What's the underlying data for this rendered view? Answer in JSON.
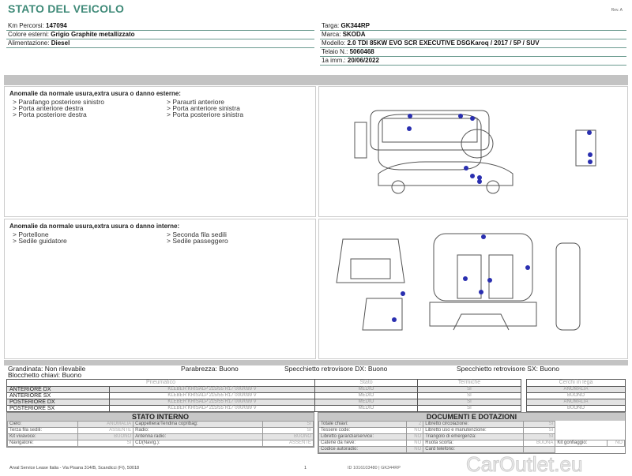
{
  "header": {
    "title": "STATO DEL VEICOLO",
    "rev": "Rev. A"
  },
  "vehicle_left": [
    {
      "label": "Km Percorsi:",
      "value": "147094"
    },
    {
      "label": "Colore esterni:",
      "value": "Grigio Graphite metallizzato"
    },
    {
      "label": "Alimentazione:",
      "value": "Diesel"
    }
  ],
  "vehicle_right": [
    {
      "label": "Targa:",
      "value": "GK344RP"
    },
    {
      "label": "Marca:",
      "value": "SKODA"
    },
    {
      "label": "Modello:",
      "value": "2.0 TDI 85KW EVO SCR EXECUTIVE DSGKaroq / 2017 / 5P / SUV"
    },
    {
      "label": "Telaio N.:",
      "value": "5060468"
    },
    {
      "label": "1a imm.:",
      "value": "20/06/2022"
    }
  ],
  "external": {
    "title": "Anomalie da normale usura,extra usura o danno esterne:",
    "items": [
      "> Parafango posteriore sinistro",
      "> Paraurti anteriore",
      "> Porta anteriore destra",
      "> Porta anteriore sinistra",
      "> Porta posteriore destra",
      "> Porta posteriore sinistra"
    ]
  },
  "internal": {
    "title": "Anomalie da normale usura,extra usura o danno interne:",
    "items": [
      "> Portellone",
      "> Seconda fila sedili",
      "> Sedile guidatore",
      "> Sedile passeggero"
    ]
  },
  "checks": {
    "grandinata": "Grandinata: Non rilevabile",
    "blocchetto": "Blocchetto chiavi: Buono",
    "parabrezza": "Parabrezza: Buono",
    "spec_dx": "Specchietto retrovisore DX: Buono",
    "spec_sx": "Specchietto retrovisore SX: Buono"
  },
  "tyres": {
    "headers": [
      "Pneumatico",
      "Stato",
      "Termiche"
    ],
    "rows": [
      {
        "pos": "ANTERIORE DX",
        "tyre": "KLEBER KRISALP 215/55 R17 000/099 V",
        "stato": "MEDIO",
        "termiche": "SI"
      },
      {
        "pos": "ANTERIORE SX",
        "tyre": "KLEBER KRISALP 215/55 R17 000/099 V",
        "stato": "MEDIO",
        "termiche": "SI"
      },
      {
        "pos": "POSTERIORE DX",
        "tyre": "KLEBER KRISALP 215/55 R17 000/099 V",
        "stato": "MEDIO",
        "termiche": "SI"
      },
      {
        "pos": "POSTERIORE SX",
        "tyre": "KLEBER KRISALP 215/55 R17 000/099 V",
        "stato": "MEDIO",
        "termiche": "SI"
      }
    ],
    "rims_header": "Cerchi in lega",
    "rims": [
      "ANOMALIA",
      "BUONO",
      "ANOMALIA",
      "BUONO"
    ]
  },
  "stato_interno": {
    "title": "STATO INTERNO",
    "rows": [
      [
        "Cielo:",
        "ANOMALIA",
        "Cappelliera/Tendina copribag:",
        "SI"
      ],
      [
        "Terza fila sedili:",
        "ASSENTE",
        "Radio:",
        "SI"
      ],
      [
        "Kit vivavoce:",
        "BUONO",
        "Antenna radio:",
        "BUONO"
      ],
      [
        "Navigatore:",
        "SI",
        "CD(Navig.):",
        "ASSENTE"
      ]
    ]
  },
  "documenti": {
    "title": "DOCUMENTI E DOTAZIONI",
    "rows": [
      [
        "Totale chiavi:",
        "2",
        "Libretto circolazione:",
        "SI"
      ],
      [
        "Tessere code:",
        "NO",
        "Libretto uso e manutenzione:",
        "SI"
      ],
      [
        "Libretto garanzia/service:",
        "NO",
        "Triangolo di emergenza:",
        "SI"
      ]
    ],
    "row4": [
      "Catene da neve:",
      "NO",
      "Ruota scorta:",
      "BUONA",
      "Kit gonfiaggio:",
      "NO"
    ],
    "row5": [
      "Codice autoradio:",
      "NO",
      "Card telefono:",
      ""
    ]
  },
  "footer": {
    "address": "Arval Service Lease Italia - Via Pisana 314/B, Scandicci (FI), 50018",
    "page": "1",
    "watermark": "CarOutlet.eu",
    "code": "ID 1016103480 | GK344RP"
  },
  "colors": {
    "title": "#3f8a78",
    "damage_dot": "#2a2fb0"
  }
}
